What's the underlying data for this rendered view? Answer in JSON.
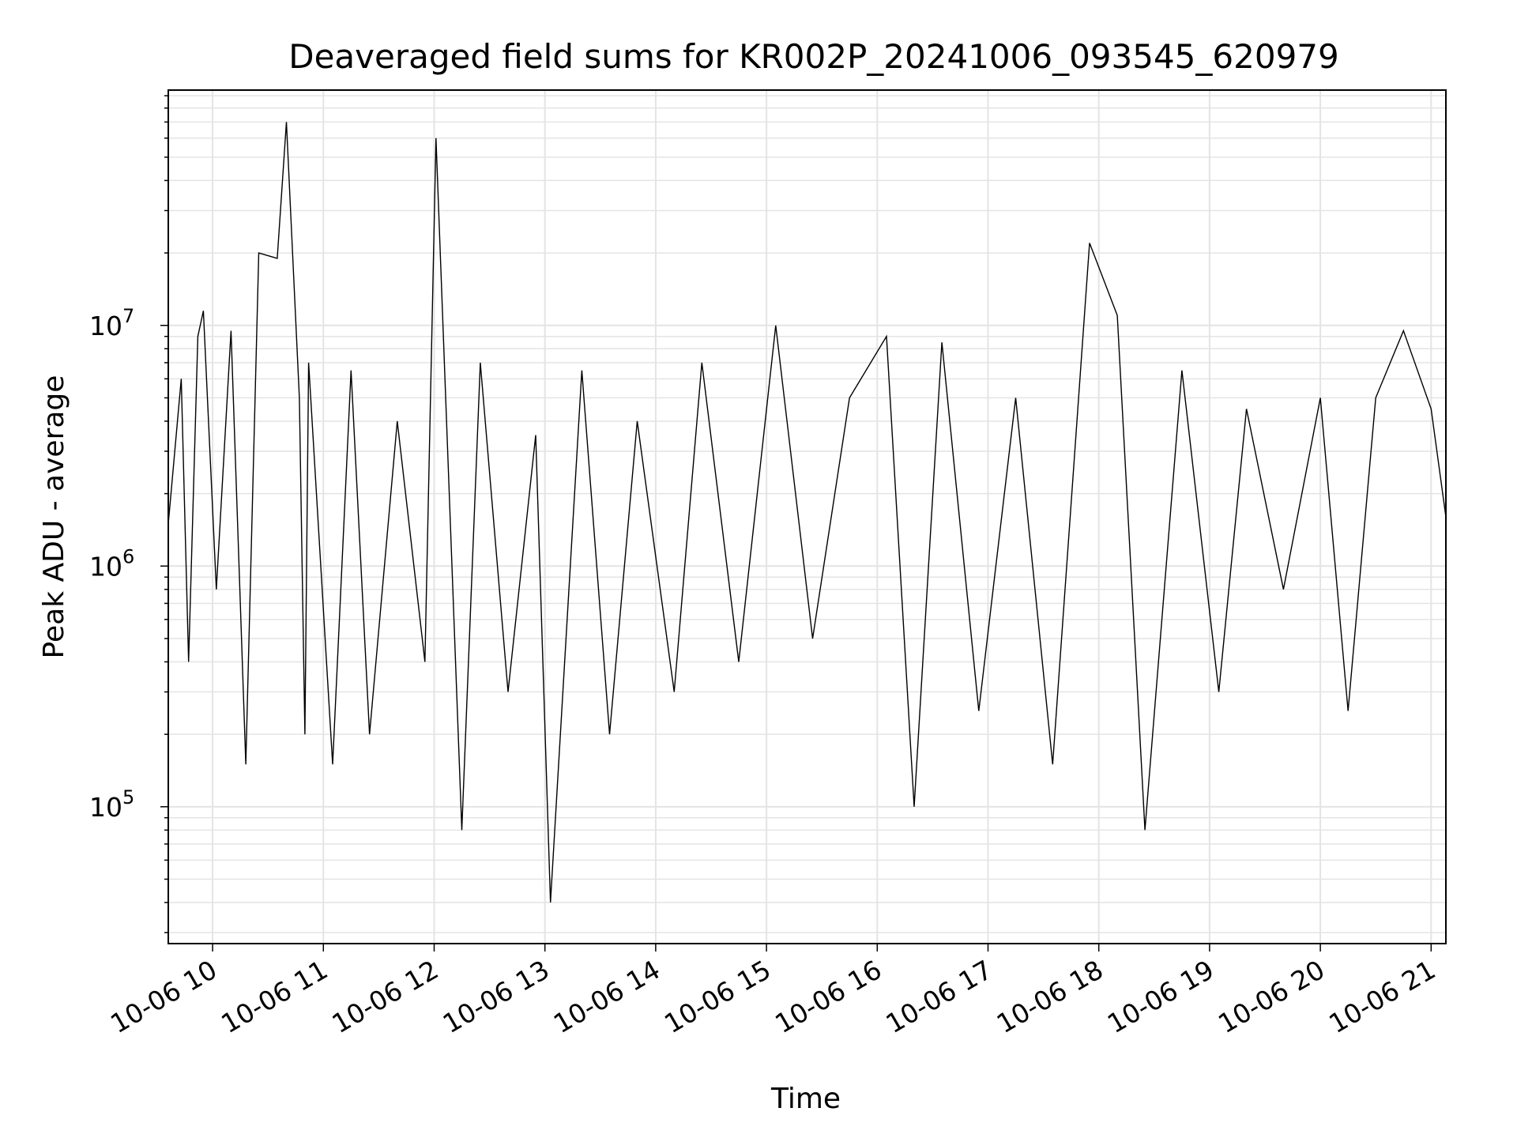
{
  "chart_data": {
    "type": "line",
    "title": "Deaveraged field sums for KR002P_20241006_093545_620979",
    "xlabel": "Time",
    "ylabel": "Peak ADU - average",
    "x_range": [
      "2024-10-06T09:36",
      "2024-10-06T21:08"
    ],
    "y_scale": "log",
    "ylim": [
      27000,
      95000000
    ],
    "grid": true,
    "line_color": "#000000",
    "x_ticks": [
      {
        "value": "2024-10-06T10:00",
        "label": "10-06 10"
      },
      {
        "value": "2024-10-06T11:00",
        "label": "10-06 11"
      },
      {
        "value": "2024-10-06T12:00",
        "label": "10-06 12"
      },
      {
        "value": "2024-10-06T13:00",
        "label": "10-06 13"
      },
      {
        "value": "2024-10-06T14:00",
        "label": "10-06 14"
      },
      {
        "value": "2024-10-06T15:00",
        "label": "10-06 15"
      },
      {
        "value": "2024-10-06T16:00",
        "label": "10-06 16"
      },
      {
        "value": "2024-10-06T17:00",
        "label": "10-06 17"
      },
      {
        "value": "2024-10-06T18:00",
        "label": "10-06 18"
      },
      {
        "value": "2024-10-06T19:00",
        "label": "10-06 19"
      },
      {
        "value": "2024-10-06T20:00",
        "label": "10-06 20"
      },
      {
        "value": "2024-10-06T21:00",
        "label": "10-06 21"
      }
    ],
    "y_ticks": [
      {
        "value": 100000,
        "base": "10",
        "exp": "5"
      },
      {
        "value": 1000000,
        "base": "10",
        "exp": "6"
      },
      {
        "value": 10000000,
        "base": "10",
        "exp": "7"
      }
    ],
    "series": [
      {
        "x": [
          "2024-10-06T09:36",
          "2024-10-06T09:43",
          "2024-10-06T09:47",
          "2024-10-06T09:52",
          "2024-10-06T09:55",
          "2024-10-06T10:02",
          "2024-10-06T10:10",
          "2024-10-06T10:18",
          "2024-10-06T10:25",
          "2024-10-06T10:35",
          "2024-10-06T10:40",
          "2024-10-06T10:47",
          "2024-10-06T10:50",
          "2024-10-06T10:52",
          "2024-10-06T11:05",
          "2024-10-06T11:15",
          "2024-10-06T11:25",
          "2024-10-06T11:40",
          "2024-10-06T11:55",
          "2024-10-06T12:01",
          "2024-10-06T12:15",
          "2024-10-06T12:25",
          "2024-10-06T12:40",
          "2024-10-06T12:55",
          "2024-10-06T13:03",
          "2024-10-06T13:20",
          "2024-10-06T13:35",
          "2024-10-06T13:50",
          "2024-10-06T14:10",
          "2024-10-06T14:25",
          "2024-10-06T14:45",
          "2024-10-06T15:05",
          "2024-10-06T15:25",
          "2024-10-06T15:45",
          "2024-10-06T16:05",
          "2024-10-06T16:20",
          "2024-10-06T16:35",
          "2024-10-06T16:55",
          "2024-10-06T17:15",
          "2024-10-06T17:35",
          "2024-10-06T17:55",
          "2024-10-06T18:10",
          "2024-10-06T18:25",
          "2024-10-06T18:45",
          "2024-10-06T19:05",
          "2024-10-06T19:20",
          "2024-10-06T19:40",
          "2024-10-06T20:00",
          "2024-10-06T20:15",
          "2024-10-06T20:30",
          "2024-10-06T20:45",
          "2024-10-06T21:00",
          "2024-10-06T21:08"
        ],
        "y": [
          1500000,
          6000000,
          400000,
          9000000,
          11500000,
          800000,
          9500000,
          150000,
          20000000,
          19000000,
          70000000,
          5000000,
          200000,
          7000000,
          150000,
          6500000,
          200000,
          4000000,
          400000,
          60000000,
          80000,
          7000000,
          300000,
          3500000,
          40000,
          6500000,
          200000,
          4000000,
          300000,
          7000000,
          400000,
          10000000,
          500000,
          5000000,
          9000000,
          100000,
          8500000,
          250000,
          5000000,
          150000,
          22000000,
          11000000,
          80000,
          6500000,
          300000,
          4500000,
          800000,
          5000000,
          250000,
          5000000,
          9500000,
          4500000,
          1600000
        ]
      }
    ]
  }
}
